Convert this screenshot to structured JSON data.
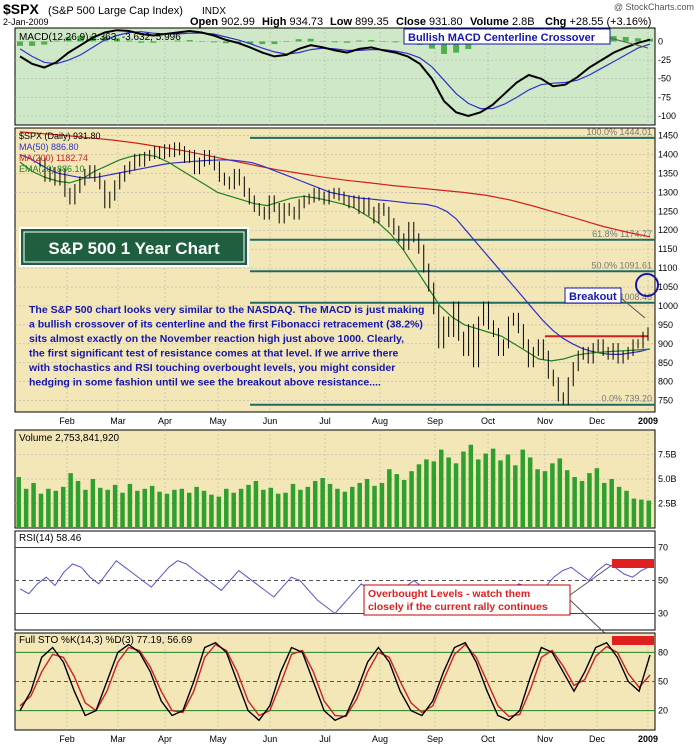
{
  "header": {
    "symbol": "$SPX",
    "name": "(S&P 500 Large Cap Index)",
    "exchange": "INDX",
    "watermark": "@ StockCharts.com",
    "date": "2-Jan-2009",
    "open_label": "Open",
    "open": "902.99",
    "high_label": "High",
    "high": "934.73",
    "low_label": "Low",
    "low": "899.35",
    "close_label": "Close",
    "close": "931.80",
    "volume_label": "Volume",
    "volume": "2.8B",
    "chg_label": "Chg",
    "chg": "+28.55 (+3.16%)"
  },
  "colors": {
    "panel_green": "#cfe8c8",
    "panel_tan": "#f3e7b8",
    "ma50": "#3030c8",
    "ma200": "#d02020",
    "ema20": "#208020",
    "fib": "#1f6b63",
    "volume": "#2ea02e",
    "annotation": "#1515b0",
    "overbought": "#e02020"
  },
  "chart_data": {
    "type": "line",
    "months": [
      "Feb",
      "Mar",
      "Apr",
      "May",
      "Jun",
      "Jul",
      "Aug",
      "Sep",
      "Oct",
      "Nov",
      "Dec",
      "2009"
    ],
    "price_panel": {
      "legend": [
        "$SPX (Daily) 931.80",
        "MA(50) 886.80",
        "MA(200) 1182.74",
        "EMA(20) 886.10"
      ],
      "y_ticks": [
        750,
        800,
        850,
        900,
        950,
        1000,
        1050,
        1100,
        1150,
        1200,
        1250,
        1300,
        1350,
        1400,
        1450
      ],
      "ylim": [
        720,
        1470
      ],
      "fibonacci": [
        {
          "label": "100.0% 1444.01",
          "value": 1444.01
        },
        {
          "label": "61.8% 1174.77",
          "value": 1174.77
        },
        {
          "label": "50.0% 1091.61",
          "value": 1091.61
        },
        {
          "label": "38.2% 1008.46",
          "value": 1008.46
        },
        {
          "label": "0.0% 739.20",
          "value": 739.2
        }
      ],
      "title_box": "S&P 500 1 Year Chart",
      "commentary": [
        "The S&P 500 chart looks very similar to the NASDAQ.  The MACD is just making",
        "a bullish crossover of its centerline and the first Fibonacci retracement (38.2%)",
        "sits almost exactly on the November reaction high just above 1000.  Clearly,",
        "the first significant test of resistance comes at that level.  If we arrive there",
        "with stochastics and RSI touching overbought levels, you might consider",
        "hedging in some fashion until we see the breakout above resistance...."
      ],
      "breakout_label": "Breakout",
      "breakout_level": 920,
      "close_series": [
        1380,
        1340,
        1355,
        1330,
        1350,
        1300,
        1280,
        1310,
        1330,
        1350,
        1360,
        1340,
        1320,
        1270,
        1290,
        1320,
        1340,
        1360,
        1370,
        1390,
        1380,
        1395,
        1400,
        1410,
        1400,
        1415,
        1405,
        1420,
        1410,
        1390,
        1400,
        1360,
        1380,
        1400,
        1385,
        1370,
        1340,
        1330,
        1320,
        1350,
        1330,
        1300,
        1280,
        1260,
        1250,
        1240,
        1280,
        1260,
        1230,
        1260,
        1250,
        1240,
        1270,
        1280,
        1285,
        1300,
        1290,
        1280,
        1295,
        1300,
        1290,
        1280,
        1270,
        1280,
        1255,
        1275,
        1250,
        1230,
        1260,
        1250,
        1220,
        1200,
        1180,
        1160,
        1210,
        1180,
        1150,
        1100,
        1050,
        990,
        900,
        960,
        930,
        1000,
        920,
        880,
        940,
        850,
        960,
        1000,
        950,
        930,
        880,
        900,
        960,
        970,
        940,
        900,
        850,
        880,
        900,
        870,
        820,
        800,
        760,
        750,
        800,
        840,
        870,
        880,
        860,
        890,
        900,
        880,
        870,
        890,
        860,
        870,
        880,
        900,
        900,
        920,
        931.8
      ],
      "ma50_series": [
        1400,
        1390,
        1375,
        1360,
        1350,
        1345,
        1340,
        1338,
        1340,
        1345,
        1350,
        1355,
        1360,
        1365,
        1370,
        1375,
        1378,
        1380,
        1382,
        1384,
        1385,
        1386,
        1385,
        1382,
        1378,
        1370,
        1360,
        1350,
        1340,
        1330,
        1320,
        1310,
        1300,
        1295,
        1290,
        1285,
        1283,
        1280,
        1278,
        1275,
        1272,
        1270,
        1268,
        1262,
        1250,
        1230,
        1200,
        1170,
        1140,
        1110,
        1080,
        1050,
        1020,
        990,
        960,
        935,
        915,
        900,
        888,
        880,
        875,
        872,
        872,
        876,
        880,
        886.8
      ],
      "ma200_series": [
        1460,
        1455,
        1450,
        1444,
        1438,
        1430,
        1420,
        1410,
        1398,
        1385,
        1372,
        1360,
        1350,
        1340,
        1332,
        1325,
        1318,
        1312,
        1306,
        1300,
        1292,
        1280,
        1264,
        1246,
        1228,
        1210,
        1195,
        1182.74
      ],
      "ema20_series": [
        1380,
        1355,
        1340,
        1330,
        1325,
        1335,
        1355,
        1370,
        1385,
        1395,
        1400,
        1395,
        1380,
        1360,
        1340,
        1320,
        1300,
        1290,
        1280,
        1270,
        1265,
        1275,
        1285,
        1290,
        1285,
        1278,
        1270,
        1260,
        1240,
        1220,
        1190,
        1150,
        1100,
        1050,
        1000,
        970,
        950,
        940,
        930,
        920,
        900,
        880,
        860,
        855,
        860,
        870,
        875,
        878,
        880,
        882,
        884,
        886.1
      ]
    },
    "macd_panel": {
      "legend": "MACD(12,26,9) 2.363, -3.632, 5.996",
      "annotation": "Bullish MACD Centerline Crossover",
      "y_ticks": [
        0,
        -25,
        -50,
        -75,
        -100
      ],
      "ylim": [
        -112,
        18
      ],
      "macd_series": [
        -20,
        -30,
        -35,
        -28,
        -15,
        -5,
        5,
        12,
        15,
        14,
        10,
        8,
        10,
        12,
        14,
        12,
        8,
        2,
        -2,
        -8,
        -15,
        -20,
        -18,
        -10,
        -5,
        -8,
        -12,
        -15,
        -10,
        -8,
        -12,
        -15,
        -20,
        -30,
        -50,
        -80,
        -95,
        -100,
        -95,
        -85,
        -70,
        -55,
        -45,
        -50,
        -60,
        -58,
        -48,
        -35,
        -25,
        -15,
        -8,
        -2,
        2.363
      ],
      "signal_series": [
        -10,
        -20,
        -28,
        -30,
        -25,
        -18,
        -8,
        2,
        8,
        12,
        13,
        11,
        10,
        10,
        11,
        11,
        10,
        6,
        2,
        -3,
        -9,
        -14,
        -17,
        -15,
        -11,
        -9,
        -10,
        -12,
        -12,
        -11,
        -11,
        -13,
        -16,
        -22,
        -34,
        -52,
        -70,
        -83,
        -90,
        -90,
        -84,
        -75,
        -65,
        -58,
        -56,
        -55,
        -52,
        -45,
        -36,
        -27,
        -18,
        -9,
        -3.632
      ]
    },
    "volume_panel": {
      "legend": "Volume 2,753,841,920",
      "y_ticks": [
        "2.5B",
        "5.0B",
        "7.5B"
      ],
      "tick_values": [
        2.5,
        5.0,
        7.5
      ],
      "ylim": [
        0,
        10
      ],
      "values_b": [
        5.2,
        4.0,
        4.6,
        3.5,
        4.0,
        3.8,
        4.2,
        5.6,
        4.8,
        3.9,
        5.0,
        4.1,
        3.9,
        4.4,
        3.6,
        4.5,
        3.8,
        4.0,
        4.3,
        3.7,
        3.5,
        3.9,
        4.0,
        3.6,
        4.2,
        3.8,
        3.4,
        3.2,
        4.0,
        3.6,
        4.0,
        4.4,
        4.8,
        3.9,
        4.1,
        3.5,
        3.6,
        4.5,
        3.9,
        4.2,
        4.8,
        5.1,
        4.5,
        4.0,
        3.7,
        4.2,
        4.6,
        5.0,
        4.3,
        4.6,
        6.0,
        5.5,
        4.9,
        5.8,
        6.5,
        7.0,
        6.8,
        8.0,
        7.2,
        6.6,
        7.8,
        8.5,
        7.0,
        7.6,
        8.1,
        6.9,
        7.5,
        6.4,
        8.0,
        7.2,
        6.0,
        5.8,
        6.6,
        7.1,
        5.9,
        5.2,
        4.8,
        5.6,
        6.1,
        4.6,
        5.0,
        4.2,
        3.8,
        3.0,
        2.9,
        2.8
      ]
    },
    "rsi_panel": {
      "legend": "RSI(14) 58.46",
      "y_ticks": [
        30,
        50,
        70
      ],
      "ylim": [
        20,
        80
      ],
      "annotation": [
        "Overbought Levels - watch them",
        "closely if the current rally continues"
      ],
      "values": [
        45,
        42,
        48,
        52,
        47,
        55,
        60,
        58,
        52,
        48,
        55,
        62,
        58,
        54,
        50,
        46,
        52,
        58,
        62,
        60,
        56,
        52,
        48,
        44,
        50,
        56,
        52,
        48,
        44,
        40,
        46,
        52,
        50,
        44,
        38,
        34,
        30,
        36,
        42,
        48,
        44,
        38,
        34,
        40,
        46,
        50,
        46,
        42,
        38,
        40,
        44,
        42,
        40,
        36,
        32,
        38,
        44,
        48,
        46,
        42,
        46,
        52,
        56,
        58,
        54,
        50,
        56,
        60,
        58,
        54,
        52,
        56,
        58.46
      ]
    },
    "sto_panel": {
      "legend": "Full STO %K(14,3) %D(3) 77.19, 56.69",
      "y_ticks": [
        20,
        50,
        80
      ],
      "ylim": [
        0,
        100
      ],
      "k_values": [
        20,
        40,
        75,
        85,
        70,
        40,
        15,
        20,
        50,
        80,
        88,
        80,
        60,
        30,
        15,
        20,
        50,
        85,
        90,
        80,
        50,
        20,
        10,
        25,
        60,
        85,
        80,
        50,
        20,
        10,
        15,
        40,
        70,
        85,
        70,
        40,
        20,
        15,
        30,
        60,
        85,
        90,
        70,
        40,
        15,
        10,
        20,
        55,
        85,
        80,
        60,
        40,
        60,
        85,
        90,
        75,
        50,
        40,
        77.19
      ],
      "d_values": [
        25,
        35,
        60,
        78,
        75,
        55,
        28,
        20,
        40,
        70,
        85,
        82,
        65,
        40,
        20,
        18,
        40,
        75,
        88,
        82,
        60,
        30,
        15,
        20,
        48,
        78,
        82,
        60,
        30,
        15,
        14,
        32,
        60,
        80,
        75,
        50,
        28,
        18,
        25,
        52,
        78,
        88,
        75,
        50,
        25,
        14,
        16,
        42,
        75,
        82,
        66,
        46,
        52,
        76,
        86,
        80,
        58,
        44,
        56.69
      ]
    }
  }
}
